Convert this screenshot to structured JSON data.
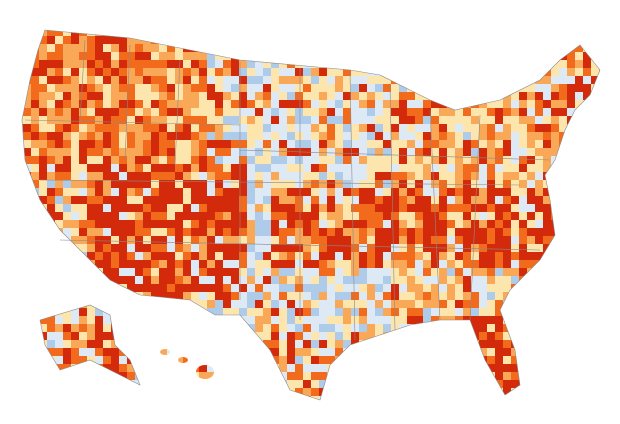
{
  "palette": [
    "#d42a0c",
    "#f26b1d",
    "#f9a857",
    "#fde6ad",
    "#dde9f5",
    "#aecbea"
  ]
}
